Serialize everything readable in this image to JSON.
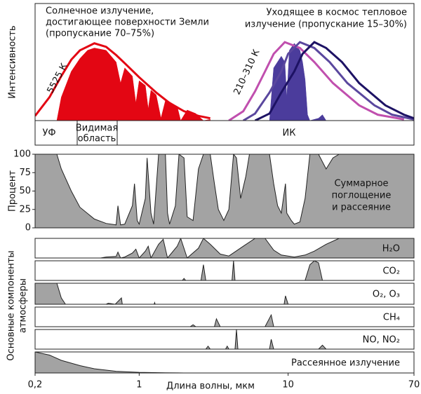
{
  "chart_data": [
    {
      "type": "spectrum",
      "xlim": [
        0.2,
        70
      ],
      "log_x": true,
      "ylim": [
        0,
        1
      ],
      "ylabel": "Интенсивность",
      "annotations": [
        "Солнечное излучение,",
        "достигающее поверхности Земли",
        "(пропускание 70–75%)",
        "Уходящее в космос тепловое",
        "излучение (пропускание 15–30%)"
      ],
      "curve_labels": [
        "5525 К",
        "210–310 К"
      ],
      "bands": [
        "УФ",
        "Видимая",
        "область",
        "ИК"
      ],
      "series": [
        {
          "style": "fill",
          "color": "#e30613",
          "x": [
            0.28,
            0.3,
            0.35,
            0.4,
            0.45,
            0.5,
            0.6,
            0.7,
            0.75,
            0.8,
            0.9,
            0.95,
            1.0,
            1.1,
            1.15,
            1.2,
            1.3,
            1.4,
            1.5,
            1.6,
            1.8,
            1.9,
            2.1,
            2.4,
            2.7,
            3
          ],
          "values": [
            0,
            0.2,
            0.42,
            0.53,
            0.6,
            0.62,
            0.6,
            0.5,
            0.32,
            0.45,
            0.38,
            0.15,
            0.34,
            0.3,
            0.1,
            0.26,
            0.22,
            0.02,
            0.17,
            0.16,
            0.12,
            0,
            0.09,
            0.06,
            0,
            0.01
          ]
        },
        {
          "style": "line",
          "color": "#e30613",
          "x": [
            0.2,
            0.25,
            0.3,
            0.35,
            0.4,
            0.5,
            0.6,
            0.7,
            0.8,
            1,
            1.3,
            1.6,
            2,
            2.5,
            3
          ],
          "values": [
            0.04,
            0.2,
            0.38,
            0.52,
            0.6,
            0.66,
            0.63,
            0.56,
            0.49,
            0.37,
            0.24,
            0.15,
            0.08,
            0.04,
            0.02
          ]
        },
        {
          "style": "fill",
          "color": "#4b3c9c",
          "x": [
            7.5,
            8,
            9,
            9.5,
            9.8,
            10.2,
            11,
            12,
            12.5,
            13,
            13.5,
            14,
            16,
            17,
            18
          ],
          "values": [
            0,
            0.45,
            0.55,
            0.5,
            0.2,
            0.6,
            0.66,
            0.6,
            0.5,
            0.35,
            0.05,
            0,
            0.02,
            0.05,
            0
          ]
        },
        {
          "style": "line",
          "color": "#c04fae",
          "x": [
            4,
            5,
            6,
            7,
            8,
            9.5,
            12,
            15,
            20,
            30,
            40,
            60
          ],
          "values": [
            0,
            0.08,
            0.25,
            0.42,
            0.57,
            0.67,
            0.62,
            0.5,
            0.32,
            0.13,
            0.05,
            0.01
          ]
        },
        {
          "style": "line",
          "color": "#5a479e",
          "x": [
            5,
            6,
            7.5,
            9,
            10,
            12,
            15,
            19,
            25,
            38,
            50,
            70
          ],
          "values": [
            0,
            0.06,
            0.24,
            0.42,
            0.57,
            0.67,
            0.62,
            0.5,
            0.32,
            0.13,
            0.05,
            0.01
          ]
        },
        {
          "style": "line",
          "color": "#1d1264",
          "x": [
            6,
            7.5,
            9,
            11,
            12.5,
            15,
            18,
            23,
            30,
            45,
            60,
            70
          ],
          "values": [
            0,
            0.06,
            0.24,
            0.42,
            0.57,
            0.67,
            0.62,
            0.5,
            0.32,
            0.13,
            0.05,
            0.02
          ]
        }
      ]
    },
    {
      "type": "area",
      "xlim": [
        0.2,
        70
      ],
      "log_x": true,
      "ylim": [
        0,
        100
      ],
      "yticks": [
        0,
        25,
        50,
        75,
        100
      ],
      "ylabel": "Процент",
      "color": "#a3a3a3",
      "label": [
        "Суммарное",
        "поглощение",
        "и рассеяние"
      ],
      "x": [
        0.2,
        0.28,
        0.3,
        0.35,
        0.4,
        0.5,
        0.6,
        0.7,
        0.72,
        0.75,
        0.8,
        0.9,
        0.93,
        0.97,
        1.0,
        1.1,
        1.13,
        1.2,
        1.25,
        1.35,
        1.5,
        1.55,
        1.6,
        1.75,
        1.85,
        2.0,
        2.1,
        2.3,
        2.5,
        2.7,
        3,
        3.2,
        3.4,
        3.7,
        4.0,
        4.3,
        4.5,
        4.8,
        5.2,
        5.5,
        7,
        7.5,
        8,
        8.5,
        9,
        9.6,
        9.8,
        10.5,
        11,
        12,
        13,
        14,
        16,
        18,
        20,
        22,
        70
      ],
      "values": [
        100,
        100,
        80,
        50,
        28,
        12,
        6,
        4,
        30,
        4,
        5,
        30,
        60,
        10,
        5,
        40,
        95,
        20,
        5,
        100,
        100,
        20,
        5,
        30,
        100,
        95,
        15,
        10,
        80,
        100,
        100,
        60,
        25,
        10,
        25,
        100,
        95,
        40,
        70,
        100,
        100,
        100,
        60,
        30,
        20,
        60,
        20,
        10,
        5,
        8,
        40,
        100,
        100,
        80,
        95,
        100,
        100
      ]
    },
    {
      "type": "area",
      "xlim": [
        0.2,
        70
      ],
      "log_x": true,
      "ylim": [
        0,
        100
      ],
      "color": "#a3a3a3",
      "ylabel": [
        "Основные компоненты",
        "атмосферы"
      ],
      "label": "H₂O",
      "x": [
        0.2,
        0.55,
        0.6,
        0.7,
        0.72,
        0.75,
        0.8,
        0.9,
        0.95,
        1.0,
        1.1,
        1.15,
        1.2,
        1.35,
        1.45,
        1.55,
        1.8,
        1.9,
        2.1,
        2.5,
        2.7,
        3,
        3.5,
        4,
        5,
        6,
        7,
        8,
        9,
        11,
        13,
        15,
        18,
        22,
        70
      ],
      "values": [
        0,
        0,
        5,
        8,
        30,
        0,
        5,
        25,
        45,
        0,
        35,
        60,
        0,
        70,
        95,
        0,
        60,
        100,
        0,
        50,
        100,
        70,
        20,
        10,
        60,
        100,
        100,
        40,
        15,
        5,
        15,
        35,
        70,
        100,
        100
      ]
    },
    {
      "type": "area",
      "xlim": [
        0.2,
        70
      ],
      "log_x": true,
      "ylim": [
        0,
        100
      ],
      "color": "#a3a3a3",
      "label": "CO₂",
      "x": [
        0.2,
        1.95,
        2.0,
        2.05,
        2.6,
        2.7,
        2.8,
        4.2,
        4.3,
        4.4,
        13,
        14,
        15,
        16,
        17,
        70
      ],
      "values": [
        0,
        0,
        10,
        0,
        0,
        80,
        0,
        0,
        100,
        0,
        0,
        80,
        100,
        90,
        0,
        0
      ]
    },
    {
      "type": "area",
      "xlim": [
        0.2,
        70
      ],
      "log_x": true,
      "ylim": [
        0,
        100
      ],
      "color": "#a3a3a3",
      "label": "O₂, O₃",
      "x": [
        0.2,
        0.25,
        0.28,
        0.3,
        0.32,
        0.6,
        0.62,
        0.69,
        0.76,
        0.77,
        1.26,
        1.27,
        1.28,
        9.4,
        9.6,
        10,
        70
      ],
      "values": [
        100,
        100,
        100,
        30,
        0,
        0,
        5,
        0,
        30,
        0,
        0,
        8,
        0,
        0,
        40,
        0,
        0
      ]
    },
    {
      "type": "area",
      "xlim": [
        0.2,
        70
      ],
      "log_x": true,
      "ylim": [
        0,
        100
      ],
      "color": "#a3a3a3",
      "label": "CH₄",
      "x": [
        0.2,
        2.2,
        2.3,
        2.4,
        3.2,
        3.3,
        3.5,
        7,
        7.7,
        8,
        70
      ],
      "values": [
        0,
        0,
        10,
        0,
        0,
        40,
        0,
        0,
        60,
        0,
        0
      ]
    },
    {
      "type": "area",
      "xlim": [
        0.2,
        70
      ],
      "log_x": true,
      "ylim": [
        0,
        100
      ],
      "color": "#a3a3a3",
      "label": "NO, NO₂",
      "x": [
        0.2,
        2.8,
        2.9,
        3,
        3.8,
        3.9,
        4,
        4.4,
        4.5,
        4.6,
        7.5,
        7.7,
        8,
        16,
        17,
        18,
        70
      ],
      "values": [
        0,
        0,
        15,
        0,
        0,
        15,
        0,
        0,
        100,
        0,
        0,
        50,
        0,
        0,
        20,
        0,
        0
      ]
    },
    {
      "type": "area",
      "xlim": [
        0.2,
        70
      ],
      "log_x": true,
      "ylim": [
        0,
        100
      ],
      "color": "#a3a3a3",
      "label": "Рассеянное излучение",
      "xticks": [
        {
          "value": 0.2,
          "label": "0,2"
        },
        1,
        10,
        70
      ],
      "xlabel": "Длина волны, мкм",
      "x": [
        0.2,
        0.25,
        0.3,
        0.4,
        0.5,
        0.7,
        1,
        1.5,
        2,
        70
      ],
      "values": [
        100,
        85,
        60,
        35,
        20,
        8,
        3,
        1,
        0,
        0
      ]
    }
  ]
}
